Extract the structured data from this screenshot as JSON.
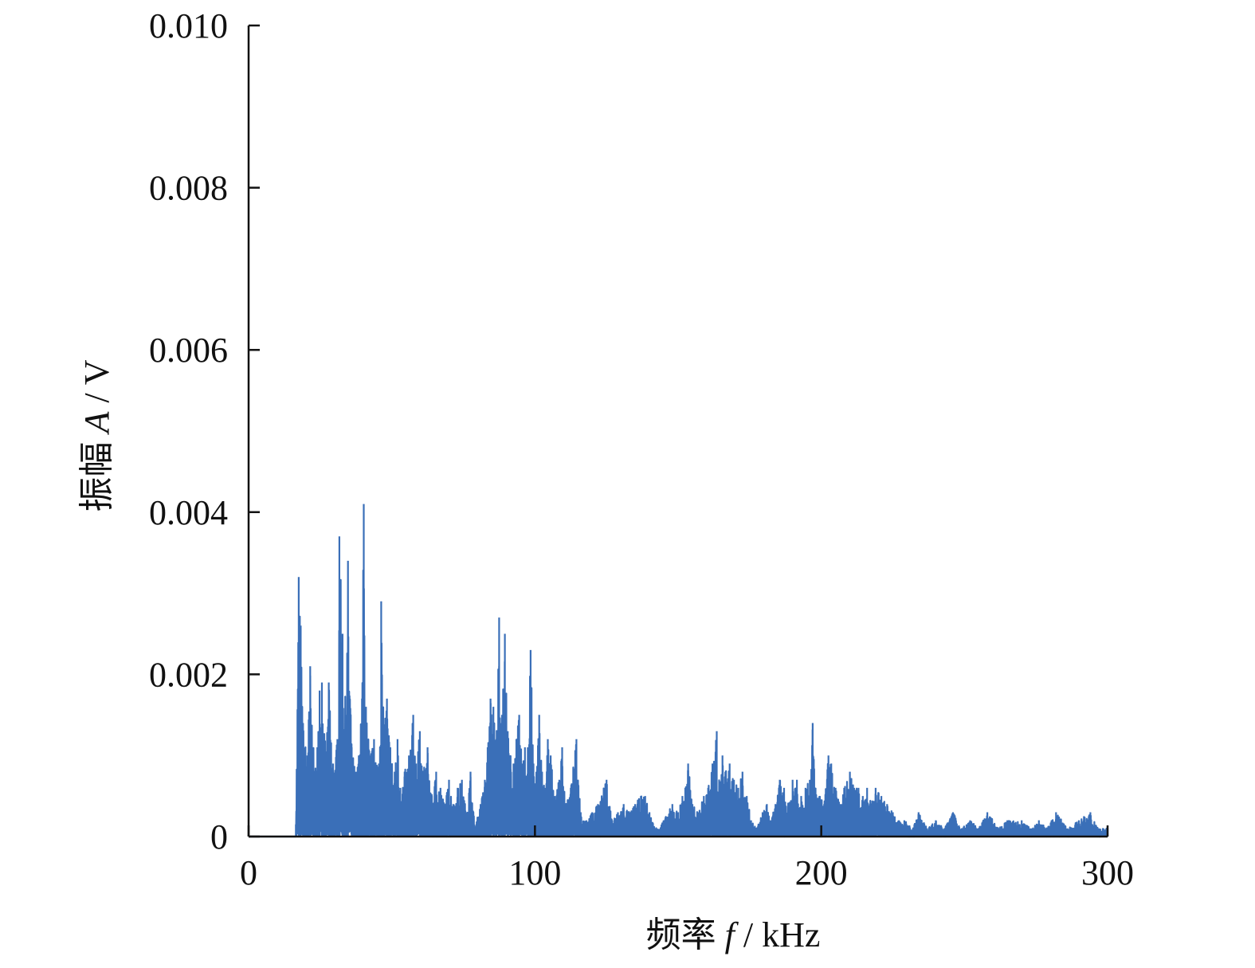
{
  "chart_data": {
    "type": "line",
    "xlabel": {
      "prefix": "频率 ",
      "var": "f",
      "unit": " / kHz"
    },
    "ylabel": {
      "prefix": "振幅 ",
      "var": "A",
      "unit": " / V"
    },
    "xlim": [
      0,
      300
    ],
    "ylim": [
      0,
      0.01
    ],
    "x_ticks": [
      0,
      100,
      200,
      300
    ],
    "x_tick_labels": [
      "0",
      "100",
      "200",
      "300"
    ],
    "y_ticks": [
      0,
      0.002,
      0.004,
      0.006,
      0.008,
      0.01
    ],
    "y_tick_labels": [
      "0",
      "0.002",
      "0.004",
      "0.006",
      "0.008",
      "0.010"
    ],
    "grid": false,
    "series": [
      {
        "color": "#3a6fb8",
        "peaks": [
          [
            16.5,
            0.00015
          ],
          [
            17.5,
            0.0032
          ],
          [
            18.2,
            0.0026
          ],
          [
            19,
            0.0014
          ],
          [
            20.5,
            0.001
          ],
          [
            21.5,
            0.0021
          ],
          [
            23,
            0.0008
          ],
          [
            24,
            0.0011
          ],
          [
            24.8,
            0.0018
          ],
          [
            25.6,
            0.0019
          ],
          [
            27,
            0.001
          ],
          [
            28,
            0.0019
          ],
          [
            29.5,
            0.0009
          ],
          [
            31,
            0.0012
          ],
          [
            31.7,
            0.0037
          ],
          [
            32.8,
            0.0025
          ],
          [
            34,
            0.0015
          ],
          [
            34.7,
            0.0034
          ],
          [
            36,
            0.0011
          ],
          [
            37.5,
            0.0008
          ],
          [
            38.5,
            0.001
          ],
          [
            39.6,
            0.0017
          ],
          [
            40.2,
            0.0041
          ],
          [
            41,
            0.0016
          ],
          [
            42.5,
            0.001
          ],
          [
            43.8,
            0.0012
          ],
          [
            45.5,
            0.0009
          ],
          [
            46.3,
            0.0029
          ],
          [
            47,
            0.0016
          ],
          [
            48.3,
            0.0017
          ],
          [
            49.5,
            0.0011
          ],
          [
            51,
            0.0008
          ],
          [
            52,
            0.0012
          ],
          [
            53,
            0.0006
          ],
          [
            54.5,
            0.0008
          ],
          [
            56,
            0.001
          ],
          [
            57.5,
            0.0015
          ],
          [
            58.5,
            0.0009
          ],
          [
            59.8,
            0.0013
          ],
          [
            61,
            0.0008
          ],
          [
            62.5,
            0.0011
          ],
          [
            64,
            0.0005
          ],
          [
            65.5,
            0.0008
          ],
          [
            67,
            0.0006
          ],
          [
            68.5,
            0.0004
          ],
          [
            70,
            0.0007
          ],
          [
            71.5,
            0.0004
          ],
          [
            73,
            0.0006
          ],
          [
            74.5,
            0.0007
          ],
          [
            76,
            0.0003
          ],
          [
            77.5,
            0.0008
          ],
          [
            79,
            0.0001
          ],
          [
            81,
            0.0004
          ],
          [
            82.5,
            0.0007
          ],
          [
            83.5,
            0.0011
          ],
          [
            84.5,
            0.0017
          ],
          [
            85.5,
            0.0016
          ],
          [
            86.5,
            0.0012
          ],
          [
            87.5,
            0.0027
          ],
          [
            88.5,
            0.0015
          ],
          [
            89.5,
            0.0025
          ],
          [
            90.5,
            0.0013
          ],
          [
            91.5,
            0.001
          ],
          [
            92.5,
            0.0009
          ],
          [
            93.5,
            0.0012
          ],
          [
            94.5,
            0.0015
          ],
          [
            95.5,
            0.0009
          ],
          [
            96.5,
            0.0011
          ],
          [
            97.5,
            0.0011
          ],
          [
            98.5,
            0.0023
          ],
          [
            99.5,
            0.0009
          ],
          [
            100.5,
            0.0008
          ],
          [
            101.5,
            0.0015
          ],
          [
            102.5,
            0.0008
          ],
          [
            103.5,
            0.0006
          ],
          [
            104.5,
            0.0012
          ],
          [
            105.5,
            0.001
          ],
          [
            107,
            0.0005
          ],
          [
            108.5,
            0.0007
          ],
          [
            109.5,
            0.0011
          ],
          [
            111,
            0.0004
          ],
          [
            112.5,
            0.0006
          ],
          [
            114.5,
            0.0012
          ],
          [
            116,
            0.0003
          ],
          [
            118,
            0.0002
          ],
          [
            120,
            0.0003
          ],
          [
            122,
            0.0004
          ],
          [
            124,
            0.0006
          ],
          [
            125,
            0.0007
          ],
          [
            127,
            0.0002
          ],
          [
            129,
            0.0003
          ],
          [
            131,
            0.0004
          ],
          [
            133,
            0.0003
          ],
          [
            135,
            0.0004
          ],
          [
            137,
            0.0005
          ],
          [
            138.5,
            0.0005
          ],
          [
            140,
            0.0003
          ],
          [
            142,
            0.0001
          ],
          [
            145,
            0.0002
          ],
          [
            148,
            0.0004
          ],
          [
            150,
            0.0003
          ],
          [
            151.5,
            0.0005
          ],
          [
            152.5,
            0.0006
          ],
          [
            153.5,
            0.0009
          ],
          [
            155,
            0.0004
          ],
          [
            157,
            0.0003
          ],
          [
            159,
            0.0005
          ],
          [
            160.5,
            0.0006
          ],
          [
            162,
            0.0009
          ],
          [
            163.5,
            0.0013
          ],
          [
            164.5,
            0.0006
          ],
          [
            165.5,
            0.001
          ],
          [
            166.5,
            0.0008
          ],
          [
            168,
            0.0009
          ],
          [
            169.5,
            0.0007
          ],
          [
            171,
            0.0006
          ],
          [
            172.5,
            0.0008
          ],
          [
            174,
            0.0005
          ],
          [
            175.5,
            0.0002
          ],
          [
            177.5,
            0.0001
          ],
          [
            179.5,
            0.0003
          ],
          [
            181,
            0.0004
          ],
          [
            182.5,
            0.0002
          ],
          [
            184,
            0.0004
          ],
          [
            185.5,
            0.0007
          ],
          [
            187,
            0.0006
          ],
          [
            188.5,
            0.0004
          ],
          [
            190,
            0.0007
          ],
          [
            191.5,
            0.0007
          ],
          [
            193,
            0.0005
          ],
          [
            194.5,
            0.0006
          ],
          [
            196,
            0.0007
          ],
          [
            197,
            0.0014
          ],
          [
            198,
            0.0006
          ],
          [
            199.5,
            0.0005
          ],
          [
            201,
            0.0004
          ],
          [
            202.5,
            0.001
          ],
          [
            203.5,
            0.0009
          ],
          [
            205,
            0.0006
          ],
          [
            206.5,
            0.0004
          ],
          [
            208,
            0.0006
          ],
          [
            210,
            0.0008
          ],
          [
            211.5,
            0.0006
          ],
          [
            213,
            0.0006
          ],
          [
            214.5,
            0.0005
          ],
          [
            216,
            0.0006
          ],
          [
            217.5,
            0.0004
          ],
          [
            219,
            0.0006
          ],
          [
            221,
            0.0005
          ],
          [
            223,
            0.0004
          ],
          [
            225,
            0.0003
          ],
          [
            227,
            0.0002
          ],
          [
            229,
            0.0002
          ],
          [
            232,
            0.0001
          ],
          [
            234,
            0.0003
          ],
          [
            237,
            0.0001
          ],
          [
            240,
            0.0002
          ],
          [
            243,
            0.0001
          ],
          [
            246,
            0.0003
          ],
          [
            249,
            0.0001
          ],
          [
            252,
            0.0002
          ],
          [
            255,
            0.0001
          ],
          [
            258,
            0.0003
          ],
          [
            262,
            0.0001
          ],
          [
            265,
            0.0002
          ],
          [
            270,
            0.0002
          ],
          [
            273,
            0.0001
          ],
          [
            276,
            0.0002
          ],
          [
            279,
            0.0001
          ],
          [
            282,
            0.0003
          ],
          [
            286,
            0.0001
          ],
          [
            290,
            0.0002
          ],
          [
            294,
            0.0003
          ],
          [
            297,
            0.0001
          ],
          [
            300,
            0.0001
          ]
        ]
      }
    ]
  }
}
